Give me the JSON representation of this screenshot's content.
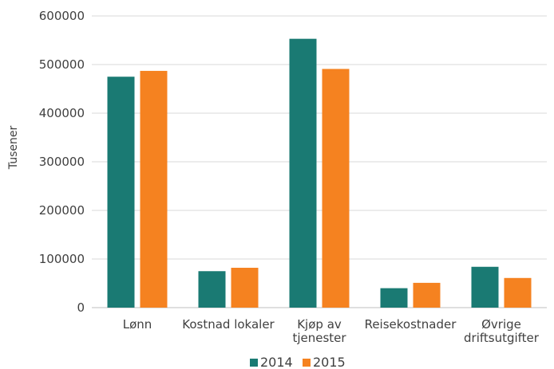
{
  "chart_data": {
    "type": "bar",
    "title": "",
    "xlabel": "",
    "ylabel": "Tusener",
    "ylim": [
      0,
      600000
    ],
    "yticks": [
      "0",
      "100000",
      "200000",
      "300000",
      "400000",
      "500000",
      "600000"
    ],
    "categories": [
      [
        "Lønn"
      ],
      [
        "Kostnad lokaler"
      ],
      [
        "Kjøp av",
        "tjenester"
      ],
      [
        "Reisekostnader"
      ],
      [
        "Øvrige",
        "driftsutgifter"
      ]
    ],
    "series": [
      {
        "name": "2014",
        "color": "#1a7a73",
        "values": [
          475000,
          75000,
          553000,
          40000,
          84000
        ]
      },
      {
        "name": "2015",
        "color": "#f58220",
        "values": [
          487000,
          82000,
          491000,
          51000,
          61000
        ]
      }
    ],
    "grid": true,
    "legend": "bottom"
  }
}
